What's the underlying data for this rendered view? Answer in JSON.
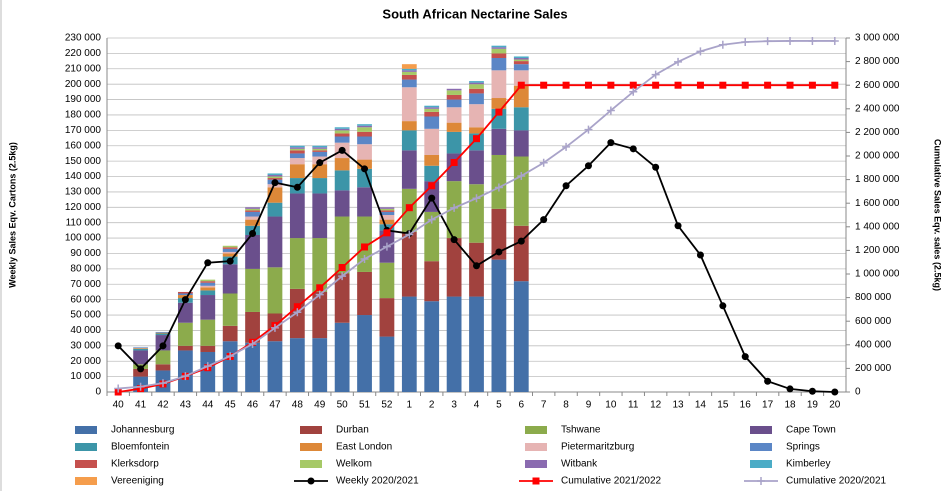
{
  "chart_data": {
    "type": "bar",
    "title": "South African Nectarine Sales",
    "y_label": "Weekly Sales Eqv. Cartons (2.5kg)",
    "y2_label": "Cumulative Sales Eqv. sales (2.5kg)",
    "categories": [
      "40",
      "41",
      "42",
      "43",
      "44",
      "45",
      "46",
      "47",
      "48",
      "49",
      "50",
      "51",
      "52",
      "1",
      "2",
      "3",
      "4",
      "5",
      "6",
      "7",
      "8",
      "9",
      "10",
      "11",
      "12",
      "13",
      "14",
      "15",
      "16",
      "17",
      "18",
      "19",
      "20"
    ],
    "stacked": true,
    "grid": true,
    "legend": "bottom",
    "ylim": [
      0,
      230000
    ],
    "yticks": [
      0,
      {
        "value": 10000,
        "label": "10 000"
      },
      {
        "value": 20000,
        "label": "20 000"
      },
      {
        "value": 30000,
        "label": "30 000"
      },
      {
        "value": 40000,
        "label": "40 000"
      },
      {
        "value": 50000,
        "label": "50 000"
      },
      {
        "value": 60000,
        "label": "60 000"
      },
      {
        "value": 70000,
        "label": "70 000"
      },
      {
        "value": 80000,
        "label": "80 000"
      },
      {
        "value": 90000,
        "label": "90 000"
      },
      {
        "value": 100000,
        "label": "100 000"
      },
      {
        "value": 110000,
        "label": "110 000"
      },
      {
        "value": 120000,
        "label": "120 000"
      },
      {
        "value": 130000,
        "label": "130 000"
      },
      {
        "value": 140000,
        "label": "140 000"
      },
      {
        "value": 150000,
        "label": "150 000"
      },
      {
        "value": 160000,
        "label": "160 000"
      },
      {
        "value": 170000,
        "label": "170 000"
      },
      {
        "value": 180000,
        "label": "180 000"
      },
      {
        "value": 190000,
        "label": "190 000"
      },
      {
        "value": 200000,
        "label": "200 000"
      },
      {
        "value": 210000,
        "label": "210 000"
      },
      {
        "value": 220000,
        "label": "220 000"
      },
      {
        "value": 230000,
        "label": "230 000"
      }
    ],
    "y2lim": [
      0,
      3000000
    ],
    "y2ticks": [
      0,
      {
        "value": 200000,
        "label": "200 000"
      },
      {
        "value": 400000,
        "label": "400 000"
      },
      {
        "value": 600000,
        "label": "600 000"
      },
      {
        "value": 800000,
        "label": "800 000"
      },
      {
        "value": 1000000,
        "label": "1 000 000"
      },
      {
        "value": 1200000,
        "label": "1 200 000"
      },
      {
        "value": 1400000,
        "label": "1 400 000"
      },
      {
        "value": 1600000,
        "label": "1 600 000"
      },
      {
        "value": 1800000,
        "label": "1 800 000"
      },
      {
        "value": 2000000,
        "label": "2 000 000"
      },
      {
        "value": 2200000,
        "label": "2 200 000"
      },
      {
        "value": 2400000,
        "label": "2 400 000"
      },
      {
        "value": 2600000,
        "label": "2 600 000"
      },
      {
        "value": 2800000,
        "label": "2 800 000"
      },
      {
        "value": 3000000,
        "label": "3 000 000"
      }
    ],
    "series": [
      {
        "name": "Johannesburg",
        "type": "bar",
        "color": "#4470a8",
        "values": [
          null,
          10000,
          14000,
          27000,
          26000,
          33000,
          32000,
          33000,
          35000,
          35000,
          45000,
          50000,
          36000,
          62000,
          59000,
          62000,
          62000,
          86000,
          72000,
          null,
          null,
          null,
          null,
          null,
          null,
          null,
          null,
          null,
          null,
          null,
          null,
          null,
          null
        ]
      },
      {
        "name": "Durban",
        "type": "bar",
        "color": "#a1423e",
        "values": [
          null,
          5000,
          4000,
          3000,
          4000,
          10000,
          20000,
          18000,
          32000,
          30000,
          32000,
          28000,
          25000,
          42000,
          26000,
          38000,
          35000,
          33000,
          36000,
          null,
          null,
          null,
          null,
          null,
          null,
          null,
          null,
          null,
          null,
          null,
          null,
          null,
          null
        ]
      },
      {
        "name": "Tshwane",
        "type": "bar",
        "color": "#8cab4c",
        "values": [
          null,
          3000,
          9000,
          15000,
          17000,
          21000,
          28000,
          30000,
          33000,
          35000,
          37000,
          36000,
          23000,
          28000,
          32000,
          37000,
          38000,
          35000,
          45000,
          null,
          null,
          null,
          null,
          null,
          null,
          null,
          null,
          null,
          null,
          null,
          null,
          null,
          null
        ]
      },
      {
        "name": "Cape Town",
        "type": "bar",
        "color": "#6a4f8c",
        "values": [
          null,
          9000,
          10000,
          13000,
          16000,
          19000,
          22000,
          33000,
          29000,
          29000,
          17000,
          19000,
          21000,
          25000,
          20000,
          18000,
          22000,
          17000,
          17000,
          null,
          null,
          null,
          null,
          null,
          null,
          null,
          null,
          null,
          null,
          null,
          null,
          null,
          null
        ]
      },
      {
        "name": "Bloemfontein",
        "type": "bar",
        "color": "#3c95a8",
        "values": [
          null,
          1000,
          1000,
          3000,
          3000,
          5000,
          6000,
          9000,
          10000,
          10000,
          13000,
          12000,
          4000,
          13000,
          10000,
          14000,
          11000,
          13000,
          15000,
          null,
          null,
          null,
          null,
          null,
          null,
          null,
          null,
          null,
          null,
          null,
          null,
          null,
          null
        ]
      },
      {
        "name": "East London",
        "type": "bar",
        "color": "#dd8838",
        "values": [
          null,
          500,
          500,
          2000,
          2000,
          2000,
          4000,
          10000,
          9000,
          9000,
          8000,
          6000,
          3000,
          6000,
          7000,
          6000,
          4000,
          7000,
          14000,
          null,
          null,
          null,
          null,
          null,
          null,
          null,
          null,
          null,
          null,
          null,
          null,
          null,
          null
        ]
      },
      {
        "name": "Pietermaritzburg",
        "type": "bar",
        "color": "#e6b4b3",
        "values": [
          null,
          0,
          0,
          0,
          1000,
          1000,
          2000,
          2000,
          4000,
          5000,
          10000,
          10000,
          3000,
          22000,
          17000,
          10000,
          15000,
          18000,
          10000,
          null,
          null,
          null,
          null,
          null,
          null,
          null,
          null,
          null,
          null,
          null,
          null,
          null,
          null
        ]
      },
      {
        "name": "Springs",
        "type": "bar",
        "color": "#5b86c6",
        "values": [
          null,
          500,
          500,
          1000,
          2000,
          2000,
          3000,
          3000,
          3000,
          3000,
          4000,
          5000,
          2000,
          5000,
          8000,
          5000,
          7000,
          8000,
          4000,
          null,
          null,
          null,
          null,
          null,
          null,
          null,
          null,
          null,
          null,
          null,
          null,
          null,
          null
        ]
      },
      {
        "name": "Klerksdorp",
        "type": "bar",
        "color": "#c5504d",
        "values": [
          null,
          0,
          0,
          1000,
          1000,
          1000,
          1000,
          1000,
          2000,
          1000,
          2000,
          3000,
          1000,
          3000,
          3000,
          3000,
          3000,
          3000,
          2000,
          null,
          null,
          null,
          null,
          null,
          null,
          null,
          null,
          null,
          null,
          null,
          null,
          null,
          null
        ]
      },
      {
        "name": "Welkom",
        "type": "bar",
        "color": "#a6c967",
        "values": [
          null,
          0,
          0,
          0,
          1000,
          1000,
          1000,
          1000,
          1000,
          1000,
          2000,
          3000,
          1000,
          2000,
          2000,
          3000,
          3000,
          3000,
          1000,
          null,
          null,
          null,
          null,
          null,
          null,
          null,
          null,
          null,
          null,
          null,
          null,
          null,
          null
        ]
      },
      {
        "name": "Witbank",
        "type": "bar",
        "color": "#8a6bb0",
        "values": [
          null,
          0,
          0,
          0,
          0,
          0,
          1000,
          1000,
          1000,
          1000,
          1000,
          1000,
          1000,
          1000,
          1000,
          1000,
          1000,
          1000,
          1000,
          null,
          null,
          null,
          null,
          null,
          null,
          null,
          null,
          null,
          null,
          null,
          null,
          null,
          null
        ]
      },
      {
        "name": "Kimberley",
        "type": "bar",
        "color": "#4bacc6",
        "values": [
          null,
          0,
          0,
          0,
          0,
          0,
          0,
          1000,
          1000,
          1000,
          1000,
          1000,
          0,
          1000,
          1000,
          0,
          1000,
          1000,
          1000,
          null,
          null,
          null,
          null,
          null,
          null,
          null,
          null,
          null,
          null,
          null,
          null,
          null,
          null
        ]
      },
      {
        "name": "Vereeniging",
        "type": "bar",
        "color": "#f59d4c",
        "values": [
          null,
          0,
          0,
          0,
          0,
          0,
          0,
          0,
          0,
          0,
          0,
          0,
          0,
          3000,
          0,
          0,
          0,
          0,
          0,
          null,
          null,
          null,
          null,
          null,
          null,
          null,
          null,
          null,
          null,
          null,
          null,
          null,
          null
        ]
      },
      {
        "name": "Weekly 2020/2021",
        "type": "line",
        "marker": "circle",
        "color": "#000000",
        "values": [
          30000,
          15000,
          30000,
          60000,
          84000,
          85000,
          103000,
          136000,
          133000,
          149000,
          157000,
          145000,
          105000,
          103000,
          126000,
          99000,
          82000,
          91000,
          98000,
          112000,
          134000,
          147000,
          162000,
          158000,
          146000,
          108000,
          89000,
          56000,
          23000,
          7000,
          2000,
          500,
          0
        ]
      },
      {
        "name": "Cumulative 2021/2022",
        "type": "line",
        "marker": "square",
        "axis": "y2",
        "color": "#ff0000",
        "values": [
          0,
          29000,
          68000,
          133000,
          206000,
          301000,
          421000,
          563000,
          723000,
          883000,
          1055000,
          1229000,
          1349000,
          1562000,
          1748000,
          1945000,
          2147000,
          2372000,
          2600000,
          2600000,
          2600000,
          2600000,
          2600000,
          2600000,
          2600000,
          2600000,
          2600000,
          2600000,
          2600000,
          2600000,
          2600000,
          2600000,
          2600000
        ]
      },
      {
        "name": "Cumulative 2020/2021",
        "type": "line",
        "marker": "plus",
        "axis": "y2",
        "color": "#a9a3c9",
        "values": [
          30000,
          45000,
          75000,
          135000,
          219000,
          304000,
          407000,
          543000,
          676000,
          825000,
          982000,
          1127000,
          1232000,
          1335000,
          1461000,
          1560000,
          1642000,
          1733000,
          1831000,
          1943000,
          2077000,
          2224000,
          2386000,
          2544000,
          2690000,
          2798000,
          2887000,
          2943000,
          2966000,
          2973000,
          2975000,
          2975000,
          2975000
        ]
      }
    ]
  }
}
